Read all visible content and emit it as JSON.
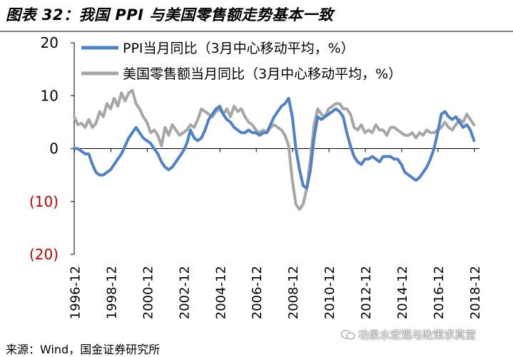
{
  "title": "图表 32：我国 PPI 与美国零售额走势基本一致",
  "source": "来源：Wind，国金证券研究所",
  "watermark": "功泉水宏观与政策求真堂",
  "chart_data": {
    "type": "line",
    "title": "",
    "xlabel": "",
    "ylabel": "",
    "ylim": [
      -20,
      20
    ],
    "xlim": [
      1996.9,
      2019.2
    ],
    "grid": false,
    "legend_position": "top-left",
    "y_ticks": [
      20,
      10,
      0,
      -10,
      -20
    ],
    "y_tick_labels": [
      "20",
      "10",
      "0",
      "(10)",
      "(20)"
    ],
    "x_ticks": [
      1996.92,
      1998.92,
      2000.92,
      2002.92,
      2004.92,
      2006.92,
      2008.92,
      2010.92,
      2012.92,
      2014.92,
      2016.92,
      2018.92
    ],
    "x_tick_labels": [
      "1996-12",
      "1998-12",
      "2000-12",
      "2002-12",
      "2004-12",
      "2006-12",
      "2008-12",
      "2010-12",
      "2012-12",
      "2014-12",
      "2016-12",
      "2018-12"
    ],
    "colors": {
      "negative_tick": "#c00000",
      "ppi": "#4f81c7",
      "retail": "#a6a6a6"
    },
    "series": [
      {
        "name": "美国零售额当月同比（3月中心移动平均，%）",
        "color": "#a6a6a6",
        "x": [
          1996.9,
          1997.1,
          1997.3,
          1997.5,
          1997.7,
          1997.9,
          1998.1,
          1998.3,
          1998.5,
          1998.7,
          1998.9,
          1999.1,
          1999.3,
          1999.5,
          1999.7,
          1999.9,
          2000.1,
          2000.3,
          2000.5,
          2000.7,
          2000.9,
          2001.1,
          2001.3,
          2001.5,
          2001.7,
          2001.9,
          2002.1,
          2002.3,
          2002.5,
          2002.7,
          2002.9,
          2003.1,
          2003.3,
          2003.5,
          2003.7,
          2003.9,
          2004.1,
          2004.3,
          2004.5,
          2004.7,
          2004.9,
          2005.1,
          2005.3,
          2005.5,
          2005.7,
          2005.9,
          2006.1,
          2006.3,
          2006.5,
          2006.7,
          2006.9,
          2007.1,
          2007.3,
          2007.5,
          2007.7,
          2007.9,
          2008.1,
          2008.3,
          2008.5,
          2008.7,
          2008.9,
          2009.1,
          2009.3,
          2009.5,
          2009.7,
          2009.9,
          2010.1,
          2010.3,
          2010.5,
          2010.7,
          2010.9,
          2011.1,
          2011.3,
          2011.5,
          2011.7,
          2011.9,
          2012.1,
          2012.3,
          2012.5,
          2012.7,
          2012.9,
          2013.1,
          2013.3,
          2013.5,
          2013.7,
          2013.9,
          2014.1,
          2014.3,
          2014.5,
          2014.7,
          2014.9,
          2015.1,
          2015.3,
          2015.5,
          2015.7,
          2015.9,
          2016.1,
          2016.3,
          2016.5,
          2016.7,
          2016.9,
          2017.1,
          2017.3,
          2017.5,
          2017.7,
          2017.9,
          2018.1,
          2018.3,
          2018.5,
          2018.7,
          2018.9
        ],
        "values": [
          6.0,
          4.5,
          4.8,
          4.0,
          5.5,
          4.0,
          4.8,
          7.0,
          6.0,
          8.5,
          7.5,
          9.5,
          8.0,
          10.5,
          9.0,
          10.5,
          11.0,
          8.5,
          7.5,
          6.0,
          5.0,
          3.0,
          3.5,
          2.5,
          0.5,
          4.0,
          2.5,
          4.5,
          3.5,
          2.5,
          3.0,
          3.5,
          4.5,
          4.0,
          5.5,
          7.5,
          7.0,
          6.5,
          6.0,
          7.0,
          7.5,
          6.5,
          7.5,
          6.0,
          8.0,
          7.0,
          7.5,
          6.0,
          5.0,
          4.5,
          3.5,
          3.0,
          3.5,
          3.0,
          4.0,
          4.5,
          4.0,
          3.5,
          2.5,
          0.5,
          -6.0,
          -10.5,
          -11.5,
          -10.5,
          -7.5,
          -2.0,
          4.5,
          7.5,
          6.5,
          6.0,
          7.5,
          8.0,
          8.5,
          8.5,
          7.5,
          7.5,
          6.5,
          4.0,
          3.5,
          4.5,
          3.0,
          3.5,
          3.0,
          4.5,
          3.5,
          3.5,
          2.5,
          4.0,
          4.0,
          3.5,
          3.0,
          2.5,
          2.5,
          3.0,
          2.0,
          3.0,
          2.5,
          3.5,
          3.0,
          3.0,
          3.5,
          4.0,
          5.0,
          4.0,
          3.5,
          4.5,
          5.5,
          5.0,
          6.5,
          5.5,
          4.5
        ]
      },
      {
        "name": "PPI当月同比（3月中心移动平均，%）",
        "color": "#4f81c7",
        "x": [
          1996.9,
          1997.1,
          1997.3,
          1997.5,
          1997.7,
          1997.9,
          1998.1,
          1998.3,
          1998.5,
          1998.7,
          1998.9,
          1999.1,
          1999.3,
          1999.5,
          1999.7,
          1999.9,
          2000.1,
          2000.3,
          2000.5,
          2000.7,
          2000.9,
          2001.1,
          2001.3,
          2001.5,
          2001.7,
          2001.9,
          2002.1,
          2002.3,
          2002.5,
          2002.7,
          2002.9,
          2003.1,
          2003.3,
          2003.5,
          2003.7,
          2003.9,
          2004.1,
          2004.3,
          2004.5,
          2004.7,
          2004.9,
          2005.1,
          2005.3,
          2005.5,
          2005.7,
          2005.9,
          2006.1,
          2006.3,
          2006.5,
          2006.7,
          2006.9,
          2007.1,
          2007.3,
          2007.5,
          2007.7,
          2007.9,
          2008.1,
          2008.3,
          2008.5,
          2008.7,
          2008.9,
          2009.1,
          2009.3,
          2009.5,
          2009.7,
          2009.9,
          2010.1,
          2010.3,
          2010.5,
          2010.7,
          2010.9,
          2011.1,
          2011.3,
          2011.5,
          2011.7,
          2011.9,
          2012.1,
          2012.3,
          2012.5,
          2012.7,
          2012.9,
          2013.1,
          2013.3,
          2013.5,
          2013.7,
          2013.9,
          2014.1,
          2014.3,
          2014.5,
          2014.7,
          2014.9,
          2015.1,
          2015.3,
          2015.5,
          2015.7,
          2015.9,
          2016.1,
          2016.3,
          2016.5,
          2016.7,
          2016.9,
          2017.1,
          2017.3,
          2017.5,
          2017.7,
          2017.9,
          2018.1,
          2018.3,
          2018.5,
          2018.7,
          2018.9
        ],
        "values": [
          0.0,
          0.0,
          -0.5,
          -1.0,
          -1.0,
          -3.0,
          -4.5,
          -5.0,
          -5.0,
          -4.5,
          -4.0,
          -3.0,
          -2.0,
          -1.0,
          0.5,
          2.0,
          3.0,
          4.0,
          3.0,
          2.0,
          1.5,
          1.0,
          0.0,
          -1.0,
          -2.5,
          -3.5,
          -4.0,
          -3.5,
          -2.5,
          -1.5,
          -0.5,
          1.0,
          3.5,
          2.0,
          1.5,
          2.0,
          3.5,
          5.5,
          6.5,
          7.5,
          8.0,
          6.5,
          5.5,
          5.0,
          4.0,
          3.5,
          3.0,
          3.0,
          3.5,
          3.0,
          3.0,
          2.5,
          3.0,
          3.0,
          4.5,
          6.0,
          7.0,
          8.0,
          8.5,
          9.5,
          6.0,
          0.0,
          -4.0,
          -7.0,
          -7.5,
          -4.0,
          2.0,
          6.0,
          5.5,
          6.0,
          6.5,
          7.0,
          7.5,
          7.0,
          6.0,
          3.0,
          0.5,
          -1.5,
          -2.5,
          -3.0,
          -2.0,
          -2.0,
          -1.5,
          -2.0,
          -2.5,
          -1.5,
          -1.5,
          -1.5,
          -2.0,
          -2.0,
          -3.0,
          -4.5,
          -5.0,
          -5.5,
          -6.0,
          -5.5,
          -4.5,
          -3.5,
          -2.0,
          0.0,
          3.0,
          6.5,
          7.0,
          6.0,
          5.5,
          6.0,
          5.0,
          4.0,
          4.5,
          3.5,
          1.5
        ]
      }
    ]
  }
}
